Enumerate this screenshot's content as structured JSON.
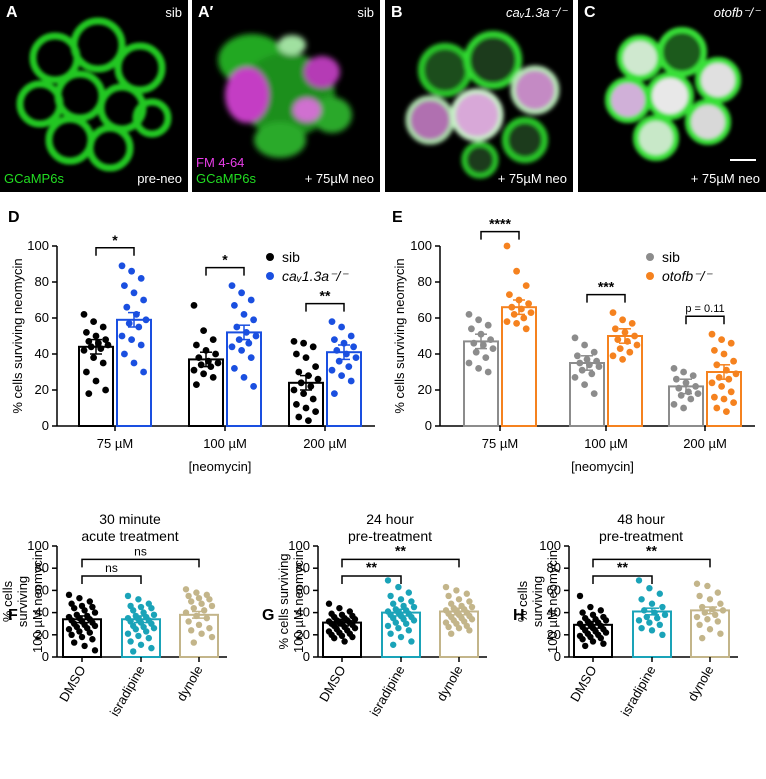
{
  "panels_top": [
    {
      "letter": "A",
      "corner": "sib",
      "bottom_right": "pre-neo",
      "lines": [
        {
          "text": "GCaMP6s",
          "color": "#22dd22"
        }
      ]
    },
    {
      "letter": "A′",
      "corner": "sib",
      "bottom_right": "+ 75µM neo",
      "lines": [
        {
          "text": "FM 4-64",
          "color": "#e83ee8"
        },
        {
          "text": "GCaMP6s",
          "color": "#22dd22"
        }
      ]
    },
    {
      "letter": "B",
      "corner": "caᵥ1.3a⁻/⁻",
      "bottom_right": "+ 75µM neo",
      "lines": []
    },
    {
      "letter": "C",
      "corner": "otofb⁻/⁻",
      "bottom_right": "+ 75µM neo",
      "lines": []
    }
  ],
  "colors": {
    "black": "#000000",
    "blue": "#1a4fe0",
    "gray": "#8c8c8c",
    "orange": "#f5821f",
    "teal": "#1aa3b8",
    "tan": "#c3b58a"
  },
  "chart_data": [
    {
      "panel": "D",
      "type": "bar",
      "ylabel": "% cells surviving neomycin",
      "xlabel": "[neomycin]",
      "categories": [
        "75 µM",
        "100 µM",
        "200 µM"
      ],
      "ylim": [
        0,
        100
      ],
      "yticks": [
        0,
        20,
        40,
        60,
        80,
        100
      ],
      "legend": [
        {
          "name": "sib",
          "color": "#000000"
        },
        {
          "name": "caᵥ1.3a⁻/⁻",
          "color": "#1a4fe0"
        }
      ],
      "series": [
        {
          "name": "sib",
          "color": "#000000",
          "values": [
            44,
            37,
            24
          ],
          "points": [
            [
              62,
              58,
              55,
              52,
              50,
              48,
              47,
              46,
              45,
              44,
              43,
              42,
              38,
              35,
              30,
              25,
              20,
              18
            ],
            [
              67,
              53,
              48,
              45,
              42,
              40,
              38,
              36,
              35,
              34,
              33,
              31,
              29,
              27,
              23
            ],
            [
              47,
              46,
              44,
              40,
              38,
              33,
              30,
              28,
              26,
              24,
              22,
              20,
              18,
              15,
              12,
              10,
              8,
              5,
              3
            ]
          ]
        },
        {
          "name": "caᵥ1.3a⁻/⁻",
          "color": "#1a4fe0",
          "values": [
            59,
            52,
            41
          ],
          "points": [
            [
              89,
              86,
              82,
              78,
              74,
              70,
              66,
              62,
              59,
              57,
              55,
              50,
              48,
              45,
              40,
              35,
              30
            ],
            [
              78,
              74,
              70,
              67,
              62,
              59,
              55,
              52,
              50,
              48,
              46,
              44,
              42,
              38,
              32,
              27,
              22
            ],
            [
              58,
              55,
              50,
              48,
              46,
              44,
              42,
              40,
              38,
              36,
              33,
              31,
              28,
              25,
              18
            ]
          ]
        }
      ],
      "significance": [
        {
          "group": 0,
          "label": "*"
        },
        {
          "group": 1,
          "label": "*"
        },
        {
          "group": 2,
          "label": "**"
        }
      ]
    },
    {
      "panel": "E",
      "type": "bar",
      "ylabel": "% cells surviving neomycin",
      "xlabel": "[neomycin]",
      "categories": [
        "75 µM",
        "100 µM",
        "200 µM"
      ],
      "ylim": [
        0,
        100
      ],
      "yticks": [
        0,
        20,
        40,
        60,
        80,
        100
      ],
      "legend": [
        {
          "name": "sib",
          "color": "#8c8c8c"
        },
        {
          "name": "otofb⁻/⁻",
          "color": "#f5821f"
        }
      ],
      "series": [
        {
          "name": "sib",
          "color": "#8c8c8c",
          "values": [
            47,
            35,
            22
          ],
          "points": [
            [
              62,
              59,
              56,
              54,
              51,
              48,
              46,
              45,
              43,
              41,
              38,
              35,
              32,
              30
            ],
            [
              49,
              45,
              41,
              39,
              37,
              36,
              35,
              34,
              33,
              31,
              29,
              27,
              23,
              18
            ],
            [
              32,
              30,
              28,
              26,
              24,
              22,
              21,
              19,
              18,
              17,
              15,
              12,
              10
            ]
          ]
        },
        {
          "name": "otofb⁻/⁻",
          "color": "#f5821f",
          "values": [
            66,
            50,
            30
          ],
          "points": [
            [
              100,
              86,
              78,
              73,
              70,
              68,
              66,
              65,
              63,
              62,
              60,
              58,
              57,
              54
            ],
            [
              63,
              59,
              57,
              54,
              52,
              50,
              48,
              47,
              45,
              43,
              41,
              39,
              37
            ],
            [
              51,
              48,
              46,
              42,
              40,
              36,
              34,
              31,
              29,
              27,
              26,
              24,
              22,
              19,
              16,
              15,
              13,
              10,
              8
            ]
          ]
        }
      ],
      "significance": [
        {
          "group": 0,
          "label": "****"
        },
        {
          "group": 1,
          "label": "***"
        },
        {
          "group": 2,
          "label": "p = 0.11"
        }
      ]
    },
    {
      "panel": "F",
      "type": "bar",
      "title": [
        "30 minute",
        "acute treatment"
      ],
      "ylabel": [
        "% cells",
        "surviving",
        "100 µM neomycin"
      ],
      "categories": [
        "DMSO",
        "isradipine",
        "dynole"
      ],
      "ylim": [
        0,
        100
      ],
      "yticks": [
        0,
        20,
        40,
        60,
        80,
        100
      ],
      "colors": [
        "#000000",
        "#1aa3b8",
        "#c3b58a"
      ],
      "values": [
        34,
        34,
        38
      ],
      "points": [
        [
          56,
          53,
          50,
          48,
          46,
          45,
          44,
          42,
          40,
          38,
          37,
          36,
          35,
          34,
          33,
          32,
          31,
          30,
          29,
          28,
          27,
          26,
          25,
          23,
          22,
          20,
          18,
          16,
          13,
          10,
          6
        ],
        [
          55,
          52,
          48,
          46,
          45,
          44,
          42,
          40,
          38,
          37,
          36,
          35,
          34,
          33,
          32,
          31,
          30,
          28,
          27,
          26,
          25,
          23,
          21,
          19,
          17,
          14,
          11,
          8,
          5
        ],
        [
          61,
          58,
          56,
          55,
          53,
          52,
          50,
          48,
          46,
          44,
          42,
          40,
          37,
          35,
          32,
          29,
          26,
          24,
          21,
          18,
          13
        ]
      ],
      "brackets": [
        {
          "from": 0,
          "to": 1,
          "label": "ns"
        },
        {
          "from": 0,
          "to": 2,
          "label": "ns"
        }
      ]
    },
    {
      "panel": "G",
      "type": "bar",
      "title": [
        "24 hour",
        "pre-treatment"
      ],
      "ylabel": [
        "% cells surviving",
        "100 µM neomycin"
      ],
      "categories": [
        "DMSO",
        "isradipine",
        "dynole"
      ],
      "ylim": [
        0,
        100
      ],
      "yticks": [
        0,
        20,
        40,
        60,
        80,
        100
      ],
      "colors": [
        "#000000",
        "#1aa3b8",
        "#c3b58a"
      ],
      "values": [
        31,
        40,
        41
      ],
      "points": [
        [
          48,
          44,
          41,
          39,
          38,
          37,
          36,
          35,
          34,
          33,
          33,
          32,
          31,
          31,
          30,
          30,
          29,
          28,
          27,
          26,
          25,
          24,
          23,
          22,
          21,
          20,
          19,
          18,
          17,
          14
        ],
        [
          69,
          63,
          58,
          55,
          52,
          50,
          48,
          46,
          45,
          43,
          42,
          41,
          40,
          39,
          38,
          37,
          36,
          35,
          34,
          33,
          31,
          30,
          28,
          26,
          24,
          21,
          18,
          14,
          11
        ],
        [
          63,
          60,
          57,
          55,
          52,
          50,
          48,
          46,
          45,
          44,
          43,
          42,
          41,
          40,
          39,
          38,
          37,
          36,
          35,
          34,
          33,
          32,
          31,
          30,
          28,
          27,
          26,
          24,
          21
        ]
      ],
      "brackets": [
        {
          "from": 0,
          "to": 1,
          "label": "**"
        },
        {
          "from": 0,
          "to": 2,
          "label": "**"
        }
      ]
    },
    {
      "panel": "H",
      "type": "bar",
      "title": [
        "48 hour",
        "pre-treatment"
      ],
      "ylabel": [
        "% cells",
        "surviving",
        "100 µM neomycin"
      ],
      "categories": [
        "DMSO",
        "isradipine",
        "dynole"
      ],
      "ylim": [
        0,
        100
      ],
      "yticks": [
        0,
        20,
        40,
        60,
        80,
        100
      ],
      "colors": [
        "#000000",
        "#1aa3b8",
        "#c3b58a"
      ],
      "values": [
        29,
        41,
        42
      ],
      "points": [
        [
          55,
          45,
          42,
          40,
          38,
          36,
          35,
          34,
          33,
          32,
          31,
          30,
          29,
          28,
          27,
          26,
          25,
          24,
          23,
          22,
          21,
          20,
          19,
          18,
          17,
          16,
          14,
          12,
          10
        ],
        [
          69,
          62,
          57,
          52,
          48,
          45,
          42,
          40,
          38,
          36,
          35,
          33,
          31,
          29,
          26,
          24,
          20
        ],
        [
          66,
          64,
          58,
          55,
          52,
          48,
          45,
          43,
          42,
          40,
          38,
          36,
          34,
          32,
          29,
          25,
          21,
          17
        ]
      ],
      "brackets": [
        {
          "from": 0,
          "to": 1,
          "label": "**"
        },
        {
          "from": 0,
          "to": 2,
          "label": "**"
        }
      ]
    }
  ]
}
